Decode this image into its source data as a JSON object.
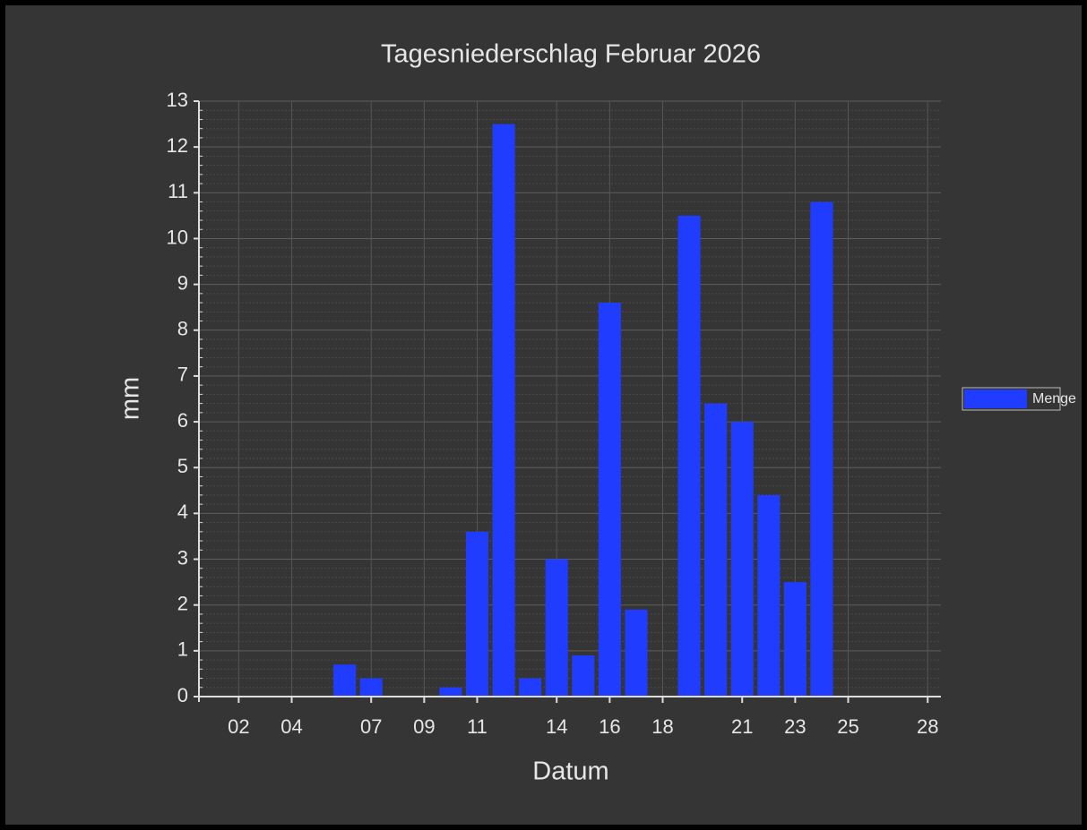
{
  "chart_data": {
    "type": "bar",
    "title": "Tagesniederschlag Februar 2026",
    "x_label": "Datum",
    "y_label": "mm",
    "series": [
      {
        "name": "Menge",
        "color": "#1f3cff",
        "x": [
          6,
          7,
          10,
          11,
          12,
          13,
          14,
          15,
          16,
          17,
          19,
          20,
          21,
          22,
          23,
          24
        ],
        "values": [
          0.7,
          0.4,
          0.2,
          3.6,
          12.5,
          0.4,
          3.0,
          0.9,
          8.6,
          1.9,
          10.5,
          6.4,
          6.0,
          4.4,
          2.5,
          10.8
        ]
      }
    ],
    "xlim": [
      0.5,
      28.5
    ],
    "xticks": [
      {
        "value": 2,
        "label": "02"
      },
      {
        "value": 4,
        "label": "04"
      },
      {
        "value": 7,
        "label": "07"
      },
      {
        "value": 9,
        "label": "09"
      },
      11,
      14,
      16,
      18,
      21,
      23,
      25,
      28
    ],
    "ylim": [
      0,
      13
    ],
    "yticks": [
      0,
      1,
      2,
      3,
      4,
      5,
      6,
      7,
      8,
      9,
      10,
      11,
      12,
      13
    ],
    "grid": true,
    "legend": "right"
  }
}
